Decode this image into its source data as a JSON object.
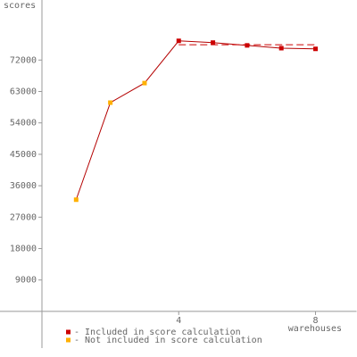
{
  "chart_data": {
    "type": "line",
    "y_label": "scores",
    "x_label": "warehouses",
    "xlim": [
      0,
      9.2
    ],
    "xticks": [
      4,
      8
    ],
    "ylim": [
      -10500,
      89200
    ],
    "yticks": [
      9000,
      18000,
      27000,
      36000,
      45000,
      54000,
      63000,
      72000
    ],
    "line_color": "#b40000",
    "score": 76400,
    "score_color": "#cc0000",
    "series": [
      {
        "name": "- Included in score calculation",
        "color": "#cc0000",
        "x": [
          4,
          5,
          6,
          7,
          8
        ],
        "values": [
          77500,
          77000,
          76200,
          75400,
          75200
        ]
      },
      {
        "name": "- Not included in score calculation",
        "color": "#ffb000",
        "x": [
          1,
          2,
          3
        ],
        "values": [
          32000,
          59800,
          65400
        ]
      }
    ]
  }
}
